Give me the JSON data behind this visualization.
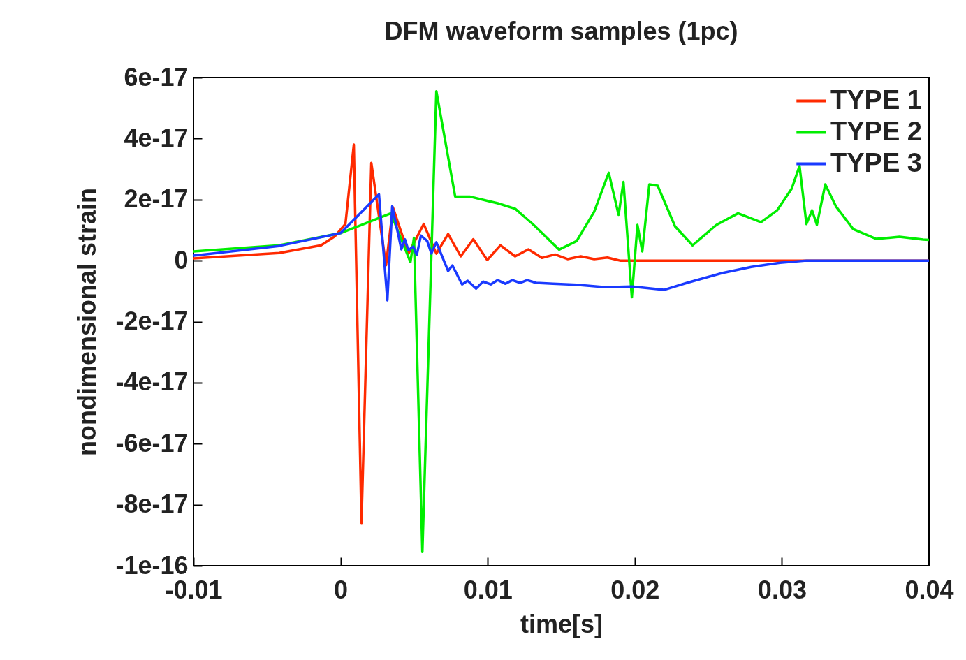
{
  "chart_data": {
    "type": "line",
    "title": "DFM waveform samples (1pc)",
    "xlabel": "time[s]",
    "ylabel": "nondimensional strain",
    "xlim": [
      -0.01,
      0.04
    ],
    "xticks": [
      -0.01,
      0,
      0.01,
      0.02,
      0.03,
      0.04
    ],
    "ylim": [
      -1e-16,
      6e-17
    ],
    "yticks": [
      -1e-16,
      -8e-17,
      -6e-17,
      -4e-17,
      -2e-17,
      0,
      2e-17,
      4e-17,
      6e-17
    ],
    "grid": false,
    "legend": "top right",
    "series": [
      {
        "name": "TYPE 1",
        "color": "#ff2a00",
        "x": [
          -0.01,
          -0.00418,
          -0.00133,
          -0.00038,
          0.00033,
          0.0009,
          0.00142,
          0.00209,
          0.00309,
          0.00356,
          0.00461,
          0.00565,
          0.00651,
          0.00731,
          0.00817,
          0.00902,
          0.00997,
          0.01087,
          0.01187,
          0.01277,
          0.01368,
          0.01458,
          0.01543,
          0.01633,
          0.01724,
          0.01814,
          0.01899,
          0.04
        ],
        "values": [
          7e-19,
          2.5e-18,
          5e-18,
          8e-18,
          1.2e-17,
          3.8e-17,
          -8.6e-17,
          3.2e-17,
          -1.5e-18,
          1.74e-17,
          2.3e-18,
          1.2e-17,
          2.3e-18,
          8.7e-18,
          1.4e-18,
          7e-18,
          2e-19,
          5e-18,
          1.4e-18,
          3.7e-18,
          9e-19,
          2e-18,
          5e-19,
          1.4e-18,
          5e-19,
          1e-18,
          0,
          0
        ]
      },
      {
        "name": "TYPE 2",
        "color": "#00ee00",
        "x": [
          -0.01,
          -0.00418,
          0,
          0.00342,
          0.00475,
          0.00499,
          0.00556,
          0.00651,
          0.00779,
          0.00878,
          0.01007,
          0.01068,
          0.01187,
          0.01306,
          0.01486,
          0.01605,
          0.01724,
          0.01823,
          0.0189,
          0.01923,
          0.0198,
          0.02018,
          0.02051,
          0.02099,
          0.02156,
          0.02274,
          0.02393,
          0.02555,
          0.02702,
          0.02858,
          0.02968,
          0.03067,
          0.0312,
          0.03167,
          0.03205,
          0.03238,
          0.03295,
          0.03367,
          0.03485,
          0.03642,
          0.03799,
          0.0396,
          0.04
        ],
        "values": [
          3e-18,
          5e-18,
          9e-18,
          1.55e-17,
          -5e-19,
          7.5e-18,
          -9.55e-17,
          5.55e-17,
          2.1e-17,
          2.1e-17,
          1.95e-17,
          1.88e-17,
          1.7e-17,
          1.2e-17,
          3.6e-18,
          6.4e-18,
          1.6e-17,
          2.88e-17,
          1.5e-17,
          2.58e-17,
          -1.2e-17,
          1.17e-17,
          3e-18,
          2.5e-17,
          2.45e-17,
          1.12e-17,
          5e-18,
          1.17e-17,
          1.55e-17,
          1.26e-17,
          1.65e-17,
          2.36e-17,
          3.1e-17,
          1.2e-17,
          1.65e-17,
          1.17e-17,
          2.5e-17,
          1.78e-17,
          1.03e-17,
          7.1e-18,
          7.8e-18,
          6.9e-18,
          6.8e-18
        ]
      },
      {
        "name": "TYPE 3",
        "color": "#1a3aff",
        "x": [
          -0.01,
          -0.00418,
          0,
          0.00261,
          0.00318,
          0.00351,
          0.00413,
          0.00437,
          0.00461,
          0.00494,
          0.00518,
          0.00546,
          0.00589,
          0.00617,
          0.00651,
          0.00731,
          0.0076,
          0.00826,
          0.00864,
          0.00921,
          0.00969,
          0.01021,
          0.01068,
          0.01121,
          0.01168,
          0.0122,
          0.01268,
          0.0133,
          0.01443,
          0.01605,
          0.018,
          0.0198,
          0.02198,
          0.02355,
          0.02593,
          0.02792,
          0.02987,
          0.03167,
          0.04
        ],
        "values": [
          1.6e-18,
          4.8e-18,
          9e-18,
          2.17e-17,
          -1.3e-17,
          1.78e-17,
          3.7e-18,
          7e-18,
          3.4e-18,
          4.6e-18,
          1.8e-18,
          8.2e-18,
          6.4e-18,
          2.3e-18,
          6e-18,
          -3.4e-18,
          -1.6e-18,
          -7.8e-18,
          -6.6e-18,
          -9.2e-18,
          -6.9e-18,
          -7.8e-18,
          -6.4e-18,
          -7.6e-18,
          -6.4e-18,
          -7.3e-18,
          -6.4e-18,
          -7.3e-18,
          -7.6e-18,
          -7.9e-18,
          -8.7e-18,
          -8.5e-18,
          -9.6e-18,
          -7.3e-18,
          -4.1e-18,
          -2.1e-18,
          -7e-19,
          0,
          0
        ]
      }
    ]
  }
}
